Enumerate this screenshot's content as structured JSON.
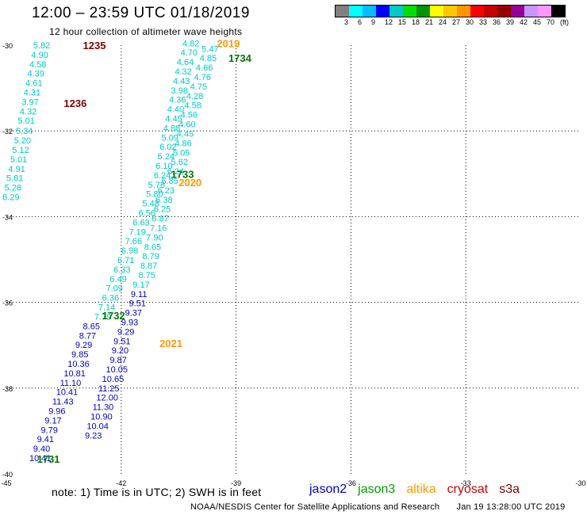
{
  "header": {
    "title": "12:00 – 23:59 UTC 01/18/2019",
    "subtitle": "12 hour collection of altimeter wave heights"
  },
  "color_scale": {
    "colors": [
      "#808080",
      "#00ffff",
      "#00bfff",
      "#0000ff",
      "#00c8c8",
      "#00e000",
      "#009600",
      "#ffff00",
      "#ffc800",
      "#ff9600",
      "#ff0000",
      "#c80000",
      "#960000",
      "#960096",
      "#c896ff",
      "#ff96ff",
      "#000000"
    ],
    "labels": [
      "3",
      "6",
      "9",
      "12",
      "15",
      "18",
      "21",
      "24",
      "27",
      "30",
      "33",
      "36",
      "39",
      "42",
      "45",
      "70",
      "(ft)"
    ]
  },
  "map": {
    "lon_ticks": [
      "-45",
      "-42",
      "-39",
      "-36",
      "-33",
      "-30"
    ],
    "lat_ticks": [
      "-30",
      "-32",
      "-34",
      "-36",
      "-38",
      "-40"
    ],
    "track_colors": {
      "jason2": "#0000c0",
      "jason3": "#00c8c8",
      "altika": "#ff9900",
      "cryosat": "#cc0000",
      "s3a": "#800000",
      "time_jason3": "#007700",
      "time_altika": "#ff9900",
      "time_s3a": "#800000"
    }
  },
  "observations": [
    {
      "v": "5.82",
      "lon": -44.3,
      "lat": -30.0,
      "sat": "jason3"
    },
    {
      "v": "4.90",
      "lon": -44.35,
      "lat": -30.22,
      "sat": "jason3"
    },
    {
      "v": "4.58",
      "lon": -44.4,
      "lat": -30.44,
      "sat": "jason3"
    },
    {
      "v": "4.39",
      "lon": -44.45,
      "lat": -30.66,
      "sat": "jason3"
    },
    {
      "v": "4.61",
      "lon": -44.5,
      "lat": -30.88,
      "sat": "jason3"
    },
    {
      "v": "4.31",
      "lon": -44.55,
      "lat": -31.1,
      "sat": "jason3"
    },
    {
      "v": "3.97",
      "lon": -44.6,
      "lat": -31.32,
      "sat": "jason3"
    },
    {
      "v": "4.32",
      "lon": -44.65,
      "lat": -31.54,
      "sat": "jason3"
    },
    {
      "v": "5.01",
      "lon": -44.7,
      "lat": -31.76,
      "sat": "jason3"
    },
    {
      "v": "5.34",
      "lon": -44.75,
      "lat": -32.0,
      "sat": "jason3"
    },
    {
      "v": "5.20",
      "lon": -44.8,
      "lat": -32.22,
      "sat": "jason3"
    },
    {
      "v": "5.12",
      "lon": -44.85,
      "lat": -32.44,
      "sat": "jason3"
    },
    {
      "v": "5.01",
      "lon": -44.9,
      "lat": -32.66,
      "sat": "jason3"
    },
    {
      "v": "4.91",
      "lon": -44.95,
      "lat": -32.88,
      "sat": "jason3"
    },
    {
      "v": "5.81",
      "lon": -45.0,
      "lat": -33.1,
      "sat": "jason3"
    },
    {
      "v": "5.28",
      "lon": -45.05,
      "lat": -33.32,
      "sat": "jason3"
    },
    {
      "v": "6.29",
      "lon": -45.1,
      "lat": -33.54,
      "sat": "jason3"
    },
    {
      "v": "4.82",
      "lon": -40.4,
      "lat": -29.95,
      "sat": "jason3"
    },
    {
      "v": "4.70",
      "lon": -40.45,
      "lat": -30.17,
      "sat": "jason3"
    },
    {
      "v": "4.64",
      "lon": -40.55,
      "lat": -30.39,
      "sat": "jason3"
    },
    {
      "v": "4.32",
      "lon": -40.6,
      "lat": -30.61,
      "sat": "jason3"
    },
    {
      "v": "4.43",
      "lon": -40.65,
      "lat": -30.83,
      "sat": "jason3"
    },
    {
      "v": "3.98",
      "lon": -40.7,
      "lat": -31.05,
      "sat": "jason3"
    },
    {
      "v": "4.36",
      "lon": -40.75,
      "lat": -31.27,
      "sat": "jason3"
    },
    {
      "v": "4.40",
      "lon": -40.8,
      "lat": -31.49,
      "sat": "jason3"
    },
    {
      "v": "4.45",
      "lon": -40.85,
      "lat": -31.71,
      "sat": "jason3"
    },
    {
      "v": "4.88",
      "lon": -40.9,
      "lat": -31.93,
      "sat": "jason3"
    },
    {
      "v": "5.09",
      "lon": -40.95,
      "lat": -32.15,
      "sat": "jason3"
    },
    {
      "v": "6.02",
      "lon": -41.0,
      "lat": -32.37,
      "sat": "jason3"
    },
    {
      "v": "6.24",
      "lon": -41.05,
      "lat": -32.59,
      "sat": "jason3"
    },
    {
      "v": "6.10",
      "lon": -41.1,
      "lat": -32.81,
      "sat": "jason3"
    },
    {
      "v": "6.24",
      "lon": -41.15,
      "lat": -33.03,
      "sat": "jason3"
    },
    {
      "v": "5.76",
      "lon": -41.3,
      "lat": -33.25,
      "sat": "jason3"
    },
    {
      "v": "5.80",
      "lon": -41.35,
      "lat": -33.47,
      "sat": "jason3"
    },
    {
      "v": "5.48",
      "lon": -41.45,
      "lat": -33.69,
      "sat": "jason3"
    },
    {
      "v": "6.56",
      "lon": -41.55,
      "lat": -33.91,
      "sat": "jason3"
    },
    {
      "v": "6.63",
      "lon": -41.7,
      "lat": -34.13,
      "sat": "jason3"
    },
    {
      "v": "7.19",
      "lon": -41.8,
      "lat": -34.35,
      "sat": "jason3"
    },
    {
      "v": "7.66",
      "lon": -41.9,
      "lat": -34.57,
      "sat": "jason3"
    },
    {
      "v": "6.98",
      "lon": -42.0,
      "lat": -34.79,
      "sat": "jason3"
    },
    {
      "v": "6.71",
      "lon": -42.1,
      "lat": -35.01,
      "sat": "jason3"
    },
    {
      "v": "6.33",
      "lon": -42.2,
      "lat": -35.23,
      "sat": "jason3"
    },
    {
      "v": "6.49",
      "lon": -42.3,
      "lat": -35.45,
      "sat": "jason3"
    },
    {
      "v": "7.09",
      "lon": -42.4,
      "lat": -35.67,
      "sat": "jason3"
    },
    {
      "v": "6.36",
      "lon": -42.5,
      "lat": -35.89,
      "sat": "jason3"
    },
    {
      "v": "7.14",
      "lon": -42.6,
      "lat": -36.11,
      "sat": "jason3"
    },
    {
      "v": "7.79",
      "lon": -42.7,
      "lat": -36.33,
      "sat": "jason3"
    },
    {
      "v": "5.47",
      "lon": -39.9,
      "lat": -30.08,
      "sat": "jason3"
    },
    {
      "v": "4.85",
      "lon": -39.95,
      "lat": -30.3,
      "sat": "jason3"
    },
    {
      "v": "4.66",
      "lon": -40.05,
      "lat": -30.52,
      "sat": "jason3"
    },
    {
      "v": "4.76",
      "lon": -40.1,
      "lat": -30.74,
      "sat": "jason3"
    },
    {
      "v": "4.75",
      "lon": -40.2,
      "lat": -30.96,
      "sat": "jason3"
    },
    {
      "v": "4.28",
      "lon": -40.3,
      "lat": -31.18,
      "sat": "jason3"
    },
    {
      "v": "4.58",
      "lon": -40.35,
      "lat": -31.4,
      "sat": "jason3"
    },
    {
      "v": "4.56",
      "lon": -40.45,
      "lat": -31.62,
      "sat": "jason3"
    },
    {
      "v": "4.60",
      "lon": -40.5,
      "lat": -31.84,
      "sat": "jason3"
    },
    {
      "v": "4.45",
      "lon": -40.55,
      "lat": -32.06,
      "sat": "jason3"
    },
    {
      "v": "4.86",
      "lon": -40.6,
      "lat": -32.28,
      "sat": "jason3"
    },
    {
      "v": "5.05",
      "lon": -40.65,
      "lat": -32.5,
      "sat": "jason3"
    },
    {
      "v": "5.62",
      "lon": -40.7,
      "lat": -32.72,
      "sat": "jason3"
    },
    {
      "v": "6.24",
      "lon": -40.8,
      "lat": -32.94,
      "sat": "jason3"
    },
    {
      "v": "6.85",
      "lon": -40.95,
      "lat": -33.16,
      "sat": "jason3"
    },
    {
      "v": "6.23",
      "lon": -41.05,
      "lat": -33.38,
      "sat": "jason3"
    },
    {
      "v": "6.38",
      "lon": -41.1,
      "lat": -33.6,
      "sat": "jason3"
    },
    {
      "v": "6.25",
      "lon": -41.15,
      "lat": -33.82,
      "sat": "jason3"
    },
    {
      "v": "6.87",
      "lon": -41.2,
      "lat": -34.04,
      "sat": "jason3"
    },
    {
      "v": "7.16",
      "lon": -41.25,
      "lat": -34.26,
      "sat": "jason3"
    },
    {
      "v": "7.90",
      "lon": -41.35,
      "lat": -34.48,
      "sat": "jason3"
    },
    {
      "v": "8.65",
      "lon": -41.4,
      "lat": -34.7,
      "sat": "jason3"
    },
    {
      "v": "8.79",
      "lon": -41.45,
      "lat": -34.92,
      "sat": "jason3"
    },
    {
      "v": "8.87",
      "lon": -41.5,
      "lat": -35.14,
      "sat": "jason3"
    },
    {
      "v": "8.75",
      "lon": -41.55,
      "lat": -35.36,
      "sat": "jason3"
    },
    {
      "v": "9.17",
      "lon": -41.7,
      "lat": -35.58,
      "sat": "jason3"
    },
    {
      "v": "8.65",
      "lon": -43.0,
      "lat": -36.55,
      "sat": "jason2"
    },
    {
      "v": "8.77",
      "lon": -43.1,
      "lat": -36.77,
      "sat": "jason2"
    },
    {
      "v": "9.29",
      "lon": -43.2,
      "lat": -36.99,
      "sat": "jason2"
    },
    {
      "v": "9.85",
      "lon": -43.3,
      "lat": -37.21,
      "sat": "jason2"
    },
    {
      "v": "10.36",
      "lon": -43.4,
      "lat": -37.43,
      "sat": "jason2"
    },
    {
      "v": "10.81",
      "lon": -43.5,
      "lat": -37.65,
      "sat": "jason2"
    },
    {
      "v": "11.10",
      "lon": -43.6,
      "lat": -37.87,
      "sat": "jason2"
    },
    {
      "v": "10.41",
      "lon": -43.7,
      "lat": -38.09,
      "sat": "jason2"
    },
    {
      "v": "11.43",
      "lon": -43.8,
      "lat": -38.31,
      "sat": "jason2"
    },
    {
      "v": "9.96",
      "lon": -43.9,
      "lat": -38.53,
      "sat": "jason2"
    },
    {
      "v": "9.17",
      "lon": -44.0,
      "lat": -38.75,
      "sat": "jason2"
    },
    {
      "v": "9.79",
      "lon": -44.1,
      "lat": -38.97,
      "sat": "jason2"
    },
    {
      "v": "9.41",
      "lon": -44.2,
      "lat": -39.19,
      "sat": "jason2"
    },
    {
      "v": "9.40",
      "lon": -44.3,
      "lat": -39.41,
      "sat": "jason2"
    },
    {
      "v": "10.41",
      "lon": -44.4,
      "lat": -39.63,
      "sat": "jason2"
    },
    {
      "v": "9.11",
      "lon": -41.75,
      "lat": -35.8,
      "sat": "jason2"
    },
    {
      "v": "9.51",
      "lon": -41.8,
      "lat": -36.02,
      "sat": "jason2"
    },
    {
      "v": "9.37",
      "lon": -41.9,
      "lat": -36.24,
      "sat": "jason2"
    },
    {
      "v": "9.93",
      "lon": -42.0,
      "lat": -36.46,
      "sat": "jason2"
    },
    {
      "v": "9.29",
      "lon": -42.1,
      "lat": -36.68,
      "sat": "jason2"
    },
    {
      "v": "9.51",
      "lon": -42.2,
      "lat": -36.9,
      "sat": "jason2"
    },
    {
      "v": "9.20",
      "lon": -42.25,
      "lat": -37.12,
      "sat": "jason2"
    },
    {
      "v": "9.87",
      "lon": -42.3,
      "lat": -37.34,
      "sat": "jason2"
    },
    {
      "v": "10.05",
      "lon": -42.4,
      "lat": -37.56,
      "sat": "jason2"
    },
    {
      "v": "10.65",
      "lon": -42.5,
      "lat": -37.78,
      "sat": "jason2"
    },
    {
      "v": "11.25",
      "lon": -42.6,
      "lat": -38.0,
      "sat": "jason2"
    },
    {
      "v": "12.00",
      "lon": -42.65,
      "lat": -38.22,
      "sat": "jason2"
    },
    {
      "v": "11.30",
      "lon": -42.75,
      "lat": -38.44,
      "sat": "jason2"
    },
    {
      "v": "10.90",
      "lon": -42.8,
      "lat": -38.66,
      "sat": "jason2"
    },
    {
      "v": "10.04",
      "lon": -42.9,
      "lat": -38.88,
      "sat": "jason2"
    },
    {
      "v": "9.23",
      "lon": -42.95,
      "lat": -39.1,
      "sat": "jason2"
    }
  ],
  "time_labels": [
    {
      "t": "1235",
      "lon": -43.0,
      "lat": -30.0,
      "sat": "time_s3a"
    },
    {
      "t": "1236",
      "lon": -43.5,
      "lat": -31.35,
      "sat": "time_s3a"
    },
    {
      "t": "2019",
      "lon": -39.5,
      "lat": -29.95,
      "sat": "time_altika"
    },
    {
      "t": "1734",
      "lon": -39.2,
      "lat": -30.3,
      "sat": "time_jason3"
    },
    {
      "t": "1733",
      "lon": -40.7,
      "lat": -33.0,
      "sat": "time_jason3"
    },
    {
      "t": "2020",
      "lon": -40.5,
      "lat": -33.2,
      "sat": "time_altika"
    },
    {
      "t": "1732",
      "lon": -42.5,
      "lat": -36.3,
      "sat": "time_jason3"
    },
    {
      "t": "2021",
      "lon": -41.0,
      "lat": -36.95,
      "sat": "time_altika"
    },
    {
      "t": "1731",
      "lon": -44.2,
      "lat": -39.65,
      "sat": "time_jason3"
    }
  ],
  "footer": {
    "note": "note:  1) Time is in UTC;  2) SWH is in feet",
    "satellites": [
      {
        "name": "jason2",
        "color": "#0000c0"
      },
      {
        "name": "jason3",
        "color": "#00a000"
      },
      {
        "name": "altika",
        "color": "#ff9900"
      },
      {
        "name": "cryosat",
        "color": "#cc0000"
      },
      {
        "name": "s3a",
        "color": "#800000"
      }
    ],
    "credit": "NOAA/NESDIS Center for Satellite Applications and Research",
    "timestamp": "Jan 19 13:28:00 UTC 2019"
  }
}
